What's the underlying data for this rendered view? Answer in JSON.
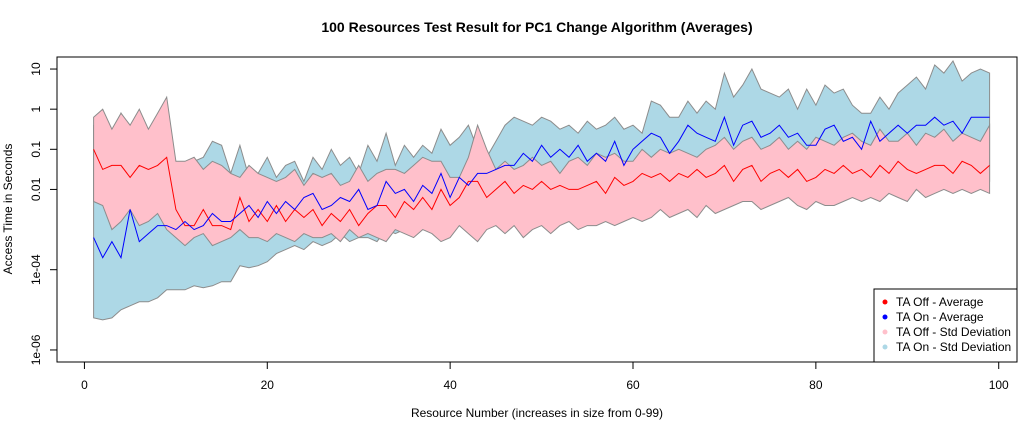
{
  "chart_data": {
    "type": "line",
    "title": "100 Resources Test Result for PC1 Change Algorithm (Averages)",
    "xlabel": "Resource Number (increases in size from 0-99)",
    "ylabel": "Access Time in Seconds",
    "xlim": [
      -3,
      102
    ],
    "ylim_log10": [
      -6.3,
      1.3
    ],
    "y_scale": "log",
    "grid": false,
    "legend_position": "bottom-right",
    "x_ticks": [
      0,
      20,
      40,
      60,
      80,
      100
    ],
    "x_tick_labels": [
      "0",
      "20",
      "40",
      "60",
      "80",
      "100"
    ],
    "y_ticks_log10": [
      -6,
      -4,
      -2,
      -1,
      0,
      1
    ],
    "y_tick_labels": [
      "1e-06",
      "1e-04",
      "0.01",
      "0.1",
      "1",
      "10"
    ],
    "x": [
      1,
      2,
      3,
      4,
      5,
      6,
      7,
      8,
      9,
      10,
      11,
      12,
      13,
      14,
      15,
      16,
      17,
      18,
      19,
      20,
      21,
      22,
      23,
      24,
      25,
      26,
      27,
      28,
      29,
      30,
      31,
      32,
      33,
      34,
      35,
      36,
      37,
      38,
      39,
      40,
      41,
      42,
      43,
      44,
      45,
      46,
      47,
      48,
      49,
      50,
      51,
      52,
      53,
      54,
      55,
      56,
      57,
      58,
      59,
      60,
      61,
      62,
      63,
      64,
      65,
      66,
      67,
      68,
      69,
      70,
      71,
      72,
      73,
      74,
      75,
      76,
      77,
      78,
      79,
      80,
      81,
      82,
      83,
      84,
      85,
      86,
      87,
      88,
      89,
      90,
      91,
      92,
      93,
      94,
      95,
      96,
      97,
      98,
      99
    ],
    "series": [
      {
        "name": "TA On - Std Deviation",
        "kind": "band",
        "color": "#add8e6",
        "upper_log10": [
          -0.4,
          -0.2,
          -0.8,
          -0.1,
          -0.6,
          -0.4,
          -1.2,
          -0.6,
          -0.5,
          -1.4,
          -1.6,
          -1.3,
          -1.2,
          -0.8,
          -0.9,
          -1.6,
          -0.9,
          -1.7,
          -1.6,
          -1.2,
          -1.7,
          -1.4,
          -1.3,
          -1.8,
          -1.2,
          -1.5,
          -1.0,
          -1.4,
          -1.2,
          -1.6,
          -0.9,
          -1.3,
          -0.6,
          -1.4,
          -0.9,
          -1.2,
          -0.9,
          -1.1,
          -0.5,
          -0.9,
          -0.7,
          -0.4,
          -1.0,
          -1.2,
          -0.8,
          -0.4,
          -0.2,
          -0.3,
          -0.4,
          -0.2,
          -0.3,
          -0.5,
          -0.4,
          -0.6,
          -0.3,
          -0.5,
          -0.4,
          -0.2,
          -0.5,
          -0.4,
          -0.6,
          0.2,
          0.1,
          -0.2,
          -0.2,
          0.2,
          -0.1,
          0.2,
          0.0,
          0.9,
          0.3,
          0.6,
          1.0,
          0.5,
          0.4,
          0.3,
          0.5,
          0.0,
          0.5,
          0.1,
          0.6,
          0.4,
          0.5,
          0.1,
          -0.1,
          -0.1,
          0.3,
          0.0,
          0.4,
          0.6,
          0.8,
          0.5,
          1.1,
          0.9,
          1.2,
          0.7,
          0.9,
          1.0,
          0.9
        ],
        "lower_log10": [
          -5.2,
          -5.25,
          -5.2,
          -5.0,
          -4.9,
          -4.8,
          -4.8,
          -4.7,
          -4.5,
          -4.5,
          -4.5,
          -4.4,
          -4.45,
          -4.4,
          -4.3,
          -4.3,
          -3.9,
          -3.95,
          -3.9,
          -3.8,
          -3.6,
          -3.5,
          -3.4,
          -3.5,
          -3.3,
          -3.4,
          -3.3,
          -3.1,
          -3.3,
          -3.2,
          -3.2,
          -3.3,
          -3.0,
          -3.1,
          -3.0,
          -3.0,
          -2.9,
          -2.9,
          -2.8,
          -2.7,
          -2.6,
          -2.7,
          -2.6,
          -2.5,
          -2.7,
          -2.6,
          -2.5,
          -2.5,
          -2.6,
          -2.5,
          -2.5,
          -2.4,
          -2.4,
          -2.5,
          -2.4,
          -2.4,
          -2.5,
          -2.3,
          -2.4,
          -2.3,
          -2.3,
          -2.2,
          -2.3,
          -2.2,
          -2.2,
          -2.3,
          -2.2,
          -2.2,
          -2.3,
          -2.2,
          -2.1,
          -2.2,
          -2.1,
          -2.2,
          -2.0,
          -2.1,
          -2.1,
          -2.0,
          -1.9,
          -2.1,
          -2.0,
          -2.0,
          -1.9,
          -2.0,
          -1.9,
          -2.0,
          -1.9,
          -2.0,
          -1.9,
          -1.9,
          -1.9,
          -2.0,
          -1.8,
          -1.9,
          -1.8,
          -1.9,
          -1.9,
          -1.8,
          -1.8
        ]
      },
      {
        "name": "TA Off - Std Deviation",
        "kind": "band",
        "color": "#ffc0cb",
        "upper_log10": [
          -0.2,
          0.0,
          -0.5,
          -0.1,
          -0.4,
          0.0,
          -0.5,
          -0.1,
          0.3,
          -1.3,
          -1.3,
          -1.2,
          -1.5,
          -1.3,
          -1.4,
          -1.6,
          -1.7,
          -1.4,
          -1.6,
          -1.7,
          -1.8,
          -1.7,
          -1.5,
          -1.9,
          -1.6,
          -1.7,
          -1.6,
          -1.9,
          -1.8,
          -1.4,
          -1.8,
          -1.6,
          -1.5,
          -1.5,
          -1.6,
          -1.4,
          -1.2,
          -1.3,
          -1.3,
          -1.7,
          -1.7,
          -1.2,
          -0.4,
          -1.0,
          -1.5,
          -1.3,
          -1.5,
          -1.4,
          -1.2,
          -1.4,
          -1.3,
          -1.6,
          -1.3,
          -1.2,
          -1.4,
          -1.1,
          -1.2,
          -1.1,
          -1.3,
          -1.3,
          -1.0,
          -1.2,
          -1.0,
          -1.1,
          -1.0,
          -1.1,
          -1.2,
          -1.0,
          -0.9,
          -0.7,
          -1.0,
          -0.8,
          -0.7,
          -1.0,
          -0.9,
          -0.7,
          -1.0,
          -0.8,
          -1.0,
          -0.7,
          -0.8,
          -0.9,
          -0.7,
          -0.6,
          -0.8,
          -0.9,
          -0.5,
          -0.8,
          -0.8,
          -0.6,
          -0.9,
          -0.6,
          -0.7,
          -0.5,
          -0.8,
          -0.6,
          -0.7,
          -0.8,
          -0.4
        ],
        "lower_log10": [
          -2.3,
          -2.4,
          -3.0,
          -2.8,
          -2.5,
          -2.9,
          -2.8,
          -2.6,
          -3.0,
          -3.2,
          -3.4,
          -3.2,
          -3.1,
          -3.4,
          -3.3,
          -3.2,
          -3.0,
          -3.2,
          -3.2,
          -3.3,
          -3.1,
          -3.2,
          -3.3,
          -3.1,
          -3.2,
          -3.2,
          -3.1,
          -3.3,
          -3.0,
          -3.2,
          -3.1,
          -3.2,
          -3.3,
          -3.0,
          -3.1,
          -3.2,
          -3.0,
          -3.1,
          -3.3,
          -3.2,
          -2.9,
          -3.1,
          -3.3,
          -3.0,
          -2.9,
          -3.1,
          -2.9,
          -3.2,
          -3.0,
          -2.9,
          -3.1,
          -2.9,
          -2.8,
          -3.0,
          -2.9,
          -2.9,
          -2.8,
          -2.9,
          -2.8,
          -2.7,
          -2.8,
          -2.7,
          -2.5,
          -2.7,
          -2.6,
          -2.5,
          -2.7,
          -2.4,
          -2.6,
          -2.5,
          -2.4,
          -2.3,
          -2.3,
          -2.5,
          -2.4,
          -2.3,
          -2.2,
          -2.4,
          -2.5,
          -2.3,
          -2.4,
          -2.4,
          -2.3,
          -2.2,
          -2.3,
          -2.2,
          -2.3,
          -2.1,
          -2.2,
          -2.3,
          -2.0,
          -2.2,
          -2.1,
          -2.0,
          -2.1,
          -2.0,
          -2.1,
          -2.0,
          -2.1
        ]
      },
      {
        "name": "TA Off - Average",
        "kind": "line",
        "color": "#ff0000",
        "values_log10": [
          -1.0,
          -1.5,
          -1.4,
          -1.4,
          -1.7,
          -1.4,
          -1.5,
          -1.4,
          -1.2,
          -2.5,
          -2.9,
          -2.9,
          -2.5,
          -2.9,
          -2.9,
          -3.0,
          -2.2,
          -2.8,
          -2.5,
          -2.8,
          -2.4,
          -2.8,
          -2.5,
          -2.7,
          -2.5,
          -2.9,
          -2.6,
          -2.8,
          -2.5,
          -2.9,
          -2.6,
          -2.4,
          -2.4,
          -2.7,
          -2.3,
          -2.5,
          -2.2,
          -2.5,
          -2.0,
          -2.4,
          -2.2,
          -1.8,
          -1.8,
          -2.2,
          -2.0,
          -1.8,
          -2.1,
          -1.9,
          -2.0,
          -1.8,
          -2.0,
          -1.9,
          -2.0,
          -2.0,
          -1.9,
          -1.8,
          -2.1,
          -1.7,
          -1.9,
          -1.8,
          -1.6,
          -1.7,
          -1.6,
          -1.8,
          -1.6,
          -1.7,
          -1.5,
          -1.7,
          -1.6,
          -1.4,
          -1.8,
          -1.5,
          -1.4,
          -1.8,
          -1.6,
          -1.5,
          -1.7,
          -1.5,
          -1.8,
          -1.7,
          -1.5,
          -1.6,
          -1.4,
          -1.6,
          -1.5,
          -1.7,
          -1.4,
          -1.6,
          -1.3,
          -1.5,
          -1.6,
          -1.5,
          -1.4,
          -1.4,
          -1.6,
          -1.3,
          -1.4,
          -1.6,
          -1.4
        ]
      },
      {
        "name": "TA On - Average",
        "kind": "line",
        "color": "#0000ff",
        "values_log10": [
          -3.2,
          -3.7,
          -3.3,
          -3.7,
          -2.5,
          -3.3,
          -3.1,
          -2.9,
          -2.9,
          -3.0,
          -2.8,
          -3.0,
          -2.9,
          -2.6,
          -2.8,
          -2.8,
          -2.6,
          -2.4,
          -2.7,
          -2.3,
          -2.6,
          -2.3,
          -2.5,
          -2.2,
          -2.1,
          -2.5,
          -2.4,
          -2.2,
          -2.3,
          -2.0,
          -2.5,
          -2.4,
          -1.8,
          -2.1,
          -2.0,
          -2.3,
          -1.9,
          -2.1,
          -1.6,
          -2.2,
          -1.7,
          -1.9,
          -1.6,
          -1.6,
          -1.5,
          -1.4,
          -1.4,
          -1.1,
          -1.3,
          -0.9,
          -1.2,
          -1.0,
          -1.2,
          -0.9,
          -1.3,
          -1.1,
          -1.3,
          -0.8,
          -1.4,
          -1.0,
          -0.8,
          -0.6,
          -0.7,
          -1.1,
          -0.8,
          -0.4,
          -0.6,
          -0.7,
          -0.8,
          -0.2,
          -0.9,
          -0.4,
          -0.3,
          -0.7,
          -0.6,
          -0.4,
          -0.7,
          -0.6,
          -0.9,
          -0.9,
          -0.5,
          -0.4,
          -0.8,
          -0.7,
          -1.0,
          -0.3,
          -0.8,
          -0.6,
          -0.4,
          -0.6,
          -0.4,
          -0.4,
          -0.2,
          -0.4,
          -0.3,
          -0.6,
          -0.2,
          -0.2,
          -0.2
        ]
      }
    ],
    "legend": [
      {
        "label": "TA Off - Average",
        "color": "#ff0000"
      },
      {
        "label": "TA On - Average",
        "color": "#0000ff"
      },
      {
        "label": "TA Off - Std Deviation",
        "color": "#ffc0cb"
      },
      {
        "label": "TA On - Std Deviation",
        "color": "#add8e6"
      }
    ]
  }
}
